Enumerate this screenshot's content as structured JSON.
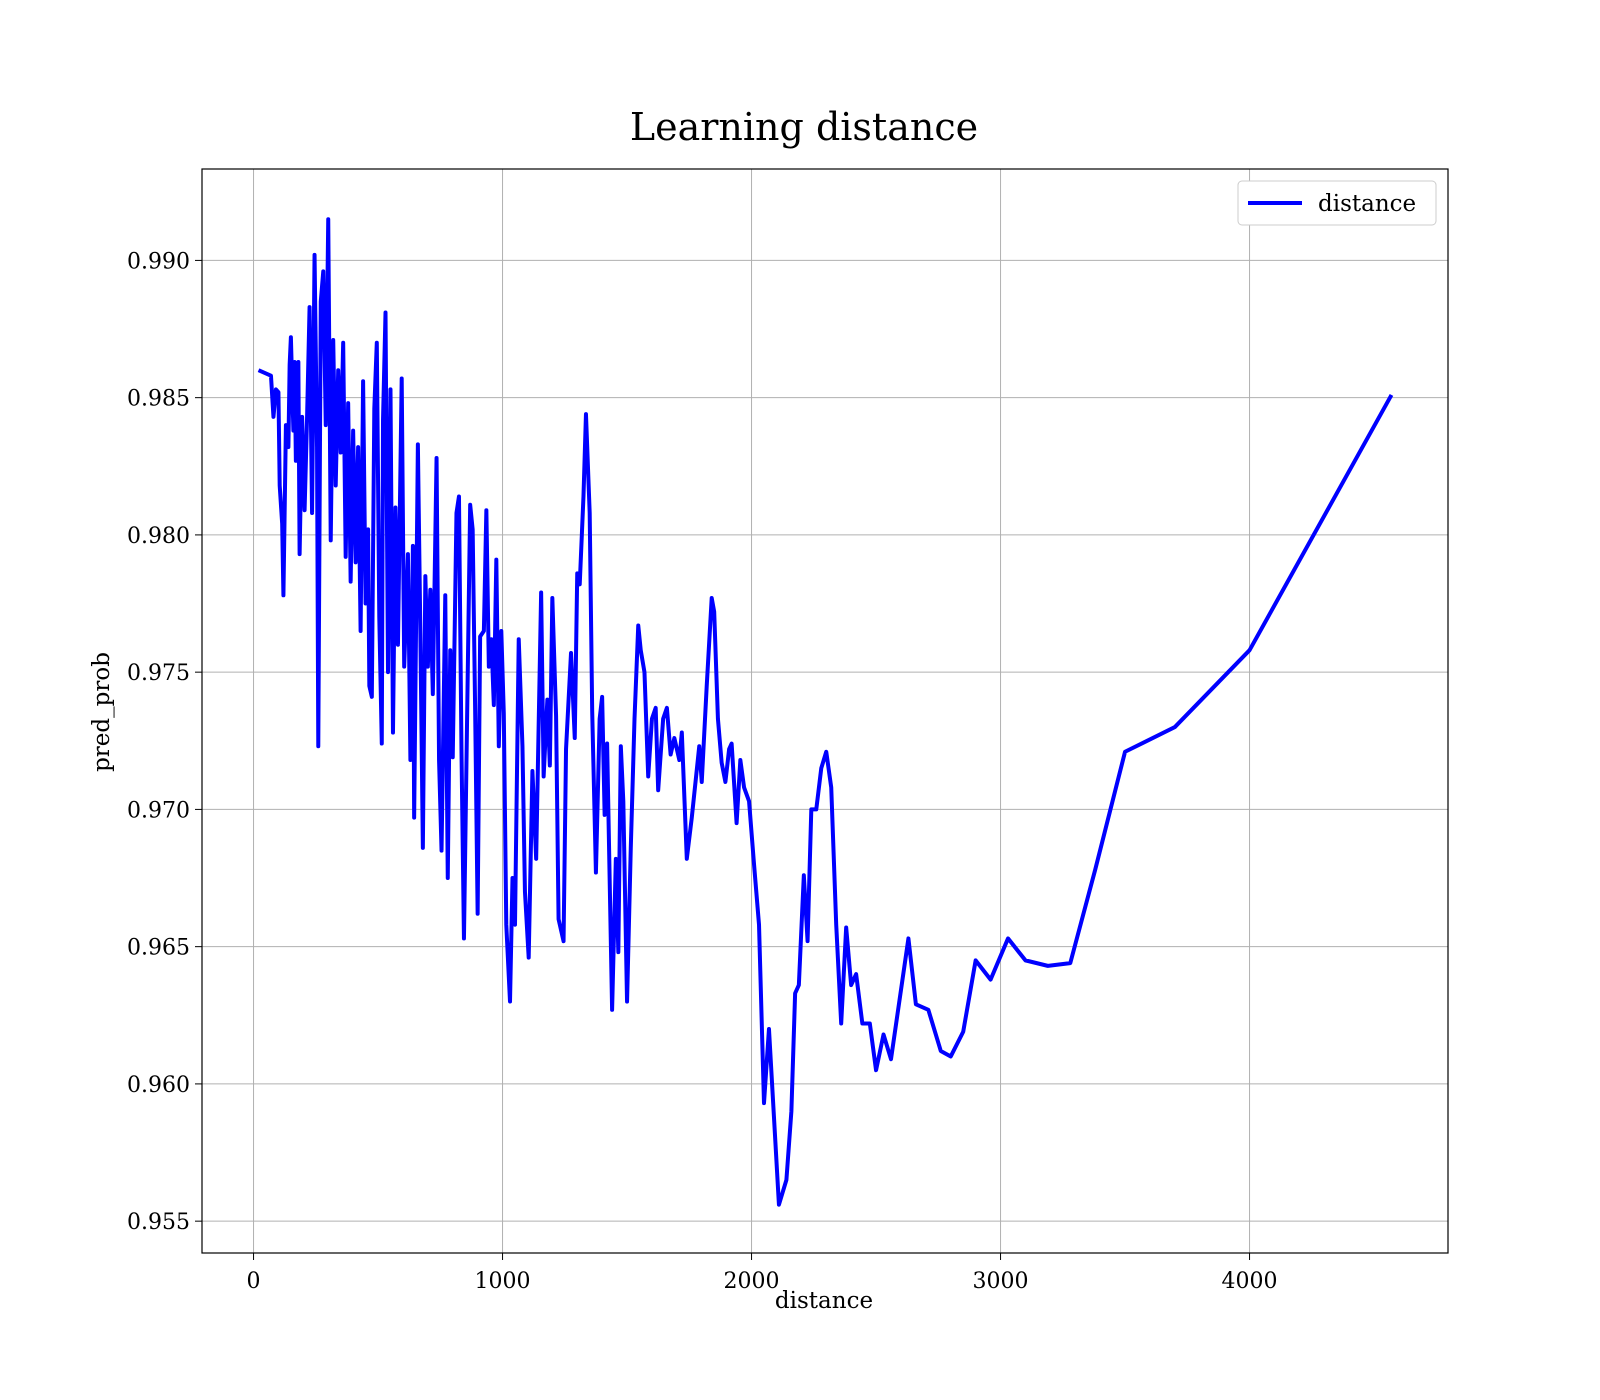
{
  "chart_data": {
    "type": "line",
    "title": "Learning distance",
    "x_label": "distance",
    "y_label": "pred_prob",
    "xlim": [
      -207,
      4797
    ],
    "ylim": [
      0.95384,
      0.99333
    ],
    "xticks": [
      0,
      1000,
      2000,
      3000,
      4000
    ],
    "yticks": [
      0.955,
      {
        "value": 0.96,
        "label": "0.960"
      },
      0.965,
      {
        "value": 0.97,
        "label": "0.970"
      },
      0.975,
      {
        "value": 0.98,
        "label": "0.980"
      },
      0.985,
      {
        "value": 0.99,
        "label": "0.990"
      }
    ],
    "grid": true,
    "legend": "upper right",
    "x": [
      20,
      70,
      80,
      90,
      100,
      105,
      115,
      120,
      130,
      140,
      145,
      150,
      160,
      165,
      170,
      180,
      185,
      195,
      205,
      215,
      225,
      235,
      245,
      255,
      260,
      270,
      280,
      290,
      300,
      310,
      320,
      330,
      340,
      350,
      360,
      370,
      380,
      390,
      400,
      410,
      420,
      430,
      440,
      450,
      460,
      465,
      475,
      485,
      495,
      505,
      515,
      520,
      530,
      540,
      550,
      560,
      570,
      580,
      595,
      605,
      620,
      630,
      640,
      645,
      660,
      670,
      680,
      690,
      700,
      710,
      720,
      735,
      745,
      755,
      770,
      780,
      790,
      800,
      815,
      825,
      835,
      845,
      860,
      870,
      880,
      890,
      900,
      910,
      925,
      935,
      945,
      955,
      965,
      975,
      985,
      995,
      1005,
      1015,
      1030,
      1040,
      1050,
      1065,
      1080,
      1090,
      1105,
      1120,
      1135,
      1155,
      1165,
      1180,
      1190,
      1200,
      1215,
      1225,
      1245,
      1255,
      1275,
      1290,
      1300,
      1310,
      1325,
      1335,
      1350,
      1360,
      1375,
      1390,
      1400,
      1410,
      1420,
      1440,
      1455,
      1465,
      1475,
      1485,
      1500,
      1515,
      1530,
      1545,
      1555,
      1570,
      1585,
      1600,
      1615,
      1625,
      1645,
      1660,
      1675,
      1690,
      1710,
      1720,
      1740,
      1760,
      1790,
      1800,
      1820,
      1840,
      1850,
      1865,
      1880,
      1895,
      1910,
      1920,
      1940,
      1955,
      1970,
      1990,
      2010,
      2030,
      2050,
      2070,
      2090,
      2110,
      2140,
      2160,
      2175,
      2190,
      2210,
      2225,
      2240,
      2260,
      2280,
      2300,
      2320,
      2340,
      2360,
      2380,
      2400,
      2420,
      2445,
      2475,
      2500,
      2530,
      2560,
      2630,
      2660,
      2710,
      2760,
      2800,
      2850,
      2900,
      2960,
      3030,
      3100,
      3190,
      3280,
      3380,
      3500,
      3700,
      4000,
      4570
    ],
    "series": [
      {
        "name": "distance",
        "color": "#0000ff",
        "values": [
          0.986,
          0.9858,
          0.9843,
          0.9853,
          0.9852,
          0.9818,
          0.9804,
          0.9778,
          0.984,
          0.9832,
          0.9862,
          0.9872,
          0.9838,
          0.9863,
          0.9827,
          0.9863,
          0.9793,
          0.9843,
          0.9809,
          0.9843,
          0.9883,
          0.9808,
          0.9902,
          0.9832,
          0.9723,
          0.9885,
          0.9896,
          0.984,
          0.9915,
          0.9798,
          0.9871,
          0.9818,
          0.986,
          0.983,
          0.987,
          0.9792,
          0.9848,
          0.9783,
          0.9838,
          0.979,
          0.9832,
          0.9765,
          0.9856,
          0.9775,
          0.9802,
          0.9745,
          0.9741,
          0.9846,
          0.987,
          0.977,
          0.9724,
          0.9842,
          0.9881,
          0.975,
          0.9853,
          0.9728,
          0.981,
          0.976,
          0.9857,
          0.9752,
          0.9793,
          0.9718,
          0.9796,
          0.9697,
          0.9833,
          0.9764,
          0.9686,
          0.9785,
          0.9752,
          0.978,
          0.9742,
          0.9828,
          0.9718,
          0.9685,
          0.9778,
          0.9675,
          0.9758,
          0.9719,
          0.9808,
          0.9814,
          0.9722,
          0.9653,
          0.9748,
          0.9811,
          0.9802,
          0.9736,
          0.9662,
          0.9763,
          0.9765,
          0.9809,
          0.9752,
          0.9762,
          0.9738,
          0.9791,
          0.9723,
          0.9765,
          0.9735,
          0.9658,
          0.963,
          0.9675,
          0.9658,
          0.9762,
          0.9723,
          0.967,
          0.9646,
          0.9714,
          0.9682,
          0.9779,
          0.9712,
          0.974,
          0.9716,
          0.9777,
          0.9734,
          0.966,
          0.9652,
          0.9722,
          0.9757,
          0.9726,
          0.9786,
          0.9782,
          0.9814,
          0.9844,
          0.9808,
          0.9736,
          0.9677,
          0.9733,
          0.9741,
          0.9698,
          0.9724,
          0.9627,
          0.9682,
          0.9648,
          0.9723,
          0.9703,
          0.963,
          0.9686,
          0.9733,
          0.9767,
          0.9758,
          0.975,
          0.9712,
          0.9733,
          0.9737,
          0.9707,
          0.9733,
          0.9737,
          0.972,
          0.9726,
          0.9718,
          0.9728,
          0.9682,
          0.9697,
          0.9723,
          0.971,
          0.9745,
          0.9777,
          0.9772,
          0.9733,
          0.9717,
          0.971,
          0.9722,
          0.9724,
          0.9695,
          0.9718,
          0.9708,
          0.9703,
          0.968,
          0.9658,
          0.9593,
          0.962,
          0.9588,
          0.9556,
          0.9565,
          0.959,
          0.9633,
          0.9636,
          0.9676,
          0.9652,
          0.97,
          0.97,
          0.9715,
          0.9721,
          0.9708,
          0.9658,
          0.9622,
          0.9657,
          0.9636,
          0.964,
          0.9622,
          0.9622,
          0.9605,
          0.9618,
          0.9609,
          0.9653,
          0.9629,
          0.9627,
          0.9612,
          0.961,
          0.9619,
          0.9645,
          0.9638,
          0.9653,
          0.9645,
          0.9643,
          0.9644,
          0.9678,
          0.9721,
          0.973,
          0.9758,
          0.9851
        ]
      }
    ]
  }
}
